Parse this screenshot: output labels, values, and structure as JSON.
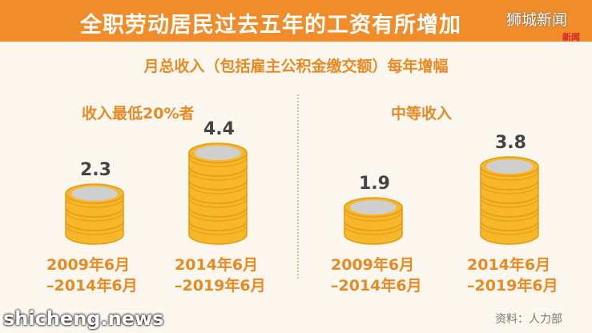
{
  "header": {
    "title": "全职劳动居民过去五年的工资有所增加"
  },
  "logo": {
    "text": "狮城新闻",
    "sub": "新闻"
  },
  "chart_data": {
    "type": "bar",
    "title": "月总收入（包括雇主公积金缴交额）每年增幅",
    "groups": [
      {
        "name": "收入最低20%者",
        "categories": [
          "2009年6月\n–2014年6月",
          "2014年6月\n–2019年6月"
        ],
        "values": [
          2.3,
          4.4
        ]
      },
      {
        "name": "中等收入",
        "categories": [
          "2009年6月\n–2014年6月",
          "2014年6月\n–2019年6月"
        ],
        "values": [
          1.9,
          3.8
        ]
      }
    ]
  },
  "footer": {
    "watermark": "shicheng.news",
    "source": "资料：人力部"
  },
  "colors": {
    "header": "#f08c2a",
    "accent": "#e88a24",
    "coin": "#f6b72a",
    "coin_dark": "#e79a12",
    "coin_top": "#cfcfcf"
  }
}
